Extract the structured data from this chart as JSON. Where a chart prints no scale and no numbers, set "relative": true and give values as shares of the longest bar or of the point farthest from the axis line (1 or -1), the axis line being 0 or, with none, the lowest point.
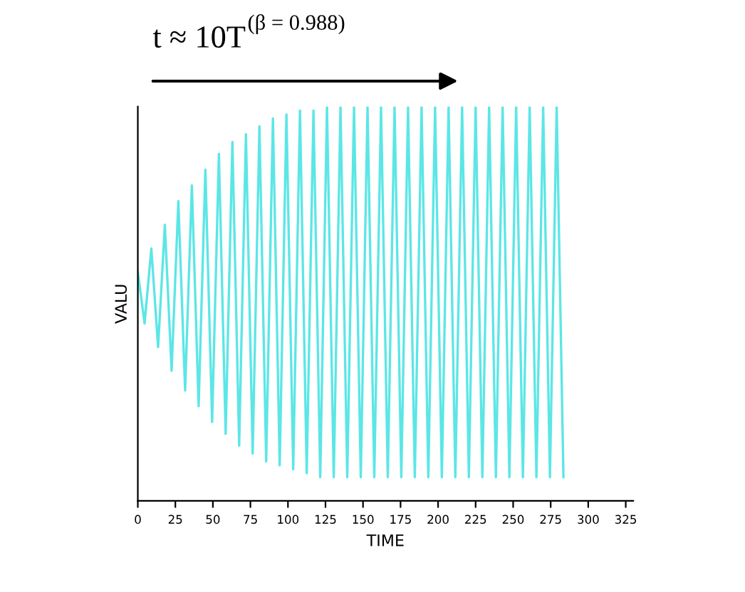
{
  "chart_data": {
    "type": "line",
    "relative": true,
    "xlabel": "TIME",
    "ylabel": "VALU",
    "annotations": [
      "t ≈ 10T$^{(β = 0.988)}$"
    ],
    "xlim": [
      0,
      330
    ],
    "xticks": [
      0,
      25,
      50,
      75,
      100,
      125,
      150,
      175,
      200,
      225,
      250,
      275,
      300,
      325
    ],
    "grid": false,
    "legend": false,
    "series": [
      {
        "color": "#5ce6e6",
        "x": [
          0,
          4.5,
          9,
          13.5,
          18,
          22.5,
          27,
          31.5,
          36,
          40.5,
          45,
          49.5,
          54,
          58.5,
          63,
          67.5,
          72,
          76.5,
          81,
          85.5,
          90,
          94.5,
          99,
          103.5,
          108,
          112.5,
          117,
          121.5,
          126,
          130.5,
          135,
          139.5,
          144,
          148.5,
          153,
          157.5,
          162,
          166.5,
          171,
          175.5,
          180,
          184.5,
          189,
          193.5,
          198,
          202.5,
          207,
          211.5,
          216,
          220.5,
          225,
          229.5,
          234,
          238.5,
          243,
          247.5,
          252,
          256.5,
          261,
          265.5,
          270,
          274.5,
          279,
          283.5
        ],
        "values": [
          0.58,
          0.45,
          0.64,
          0.39,
          0.7,
          0.33,
          0.76,
          0.28,
          0.8,
          0.24,
          0.84,
          0.2,
          0.88,
          0.17,
          0.91,
          0.14,
          0.93,
          0.12,
          0.95,
          0.1,
          0.97,
          0.09,
          0.98,
          0.08,
          0.99,
          0.07,
          0.99,
          0.06,
          1.0,
          0.06,
          1.0,
          0.06,
          1.0,
          0.06,
          1.0,
          0.06,
          1.0,
          0.06,
          1.0,
          0.06,
          1.0,
          0.06,
          1.0,
          0.06,
          1.0,
          0.06,
          1.0,
          0.06,
          1.0,
          0.06,
          1.0,
          0.06,
          1.0,
          0.06,
          1.0,
          0.06,
          1.0,
          0.06,
          1.0,
          0.06,
          1.0,
          0.06,
          1.0,
          0.06
        ]
      }
    ]
  }
}
